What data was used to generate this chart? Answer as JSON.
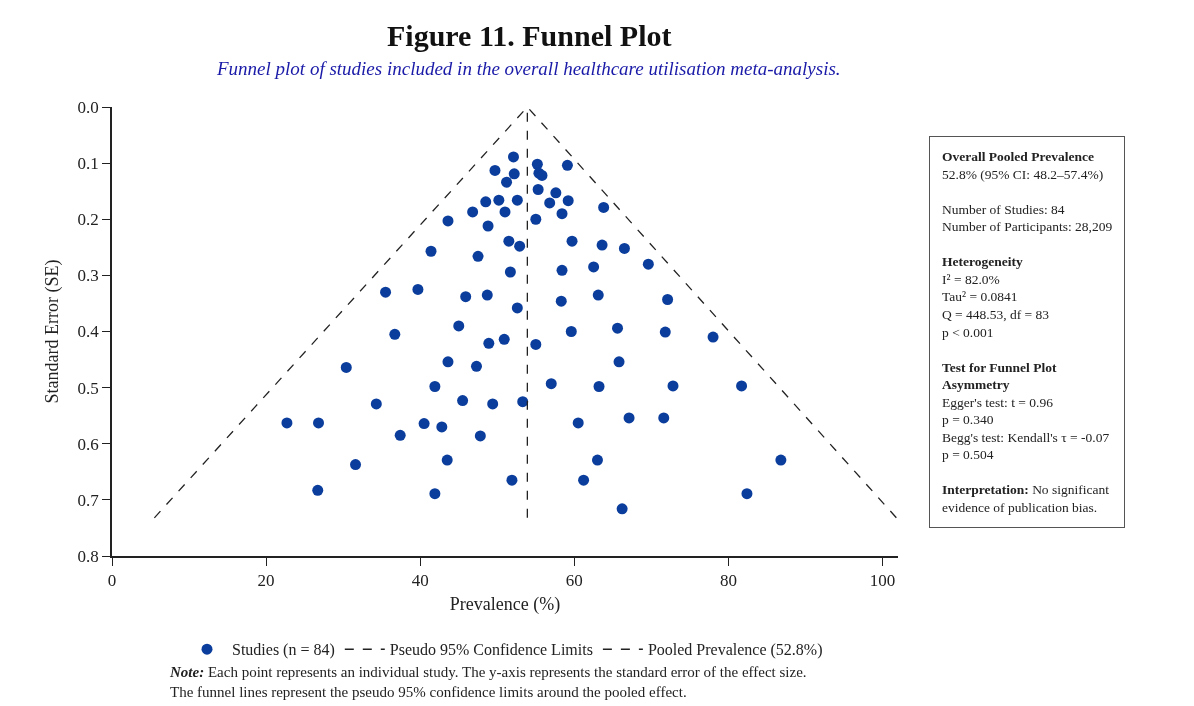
{
  "chart_data": {
    "type": "scatter",
    "title": "Figure 11. Funnel Plot",
    "subtitle": "Funnel plot of studies included in the overall healthcare utilisation meta-analysis.",
    "xlabel": "Prevalence (%)",
    "ylabel": "Standard Error (SE)",
    "xlim": [
      0,
      102
    ],
    "xticks": [
      0,
      20,
      40,
      60,
      80,
      100
    ],
    "ylim": [
      0.8,
      0.0
    ],
    "yticks": [
      {
        "value": 0,
        "label": "0.0"
      },
      0.1,
      0.2,
      0.3,
      0.4,
      0.5,
      0.6,
      0.7,
      0.8
    ],
    "legend": "bottom",
    "series": [
      {
        "name": "Studies (n = 84)",
        "color": "#0b3d9c",
        "marker": "circle",
        "x": [
          52.1,
          49.7,
          52.2,
          51.2,
          48.5,
          50.2,
          52.6,
          46.8,
          51.0,
          43.6,
          48.8,
          51.5,
          52.9,
          41.4,
          47.5,
          51.7,
          35.5,
          39.7,
          45.9,
          48.7,
          52.6,
          45.0,
          36.7,
          55.2,
          59.1,
          55.4,
          55.8,
          55.3,
          57.6,
          56.8,
          59.2,
          63.8,
          58.4,
          55.0,
          59.7,
          63.6,
          66.5,
          69.6,
          58.4,
          62.5,
          63.1,
          58.3,
          72.1,
          59.6,
          65.6,
          71.8,
          78.0,
          48.9,
          50.9,
          55.0,
          30.4,
          43.6,
          47.3,
          41.9,
          34.3,
          45.5,
          49.4,
          53.3,
          22.7,
          26.8,
          40.5,
          42.8,
          37.4,
          47.8,
          43.5,
          31.6,
          51.9,
          26.7,
          41.9,
          65.8,
          57.0,
          63.2,
          72.8,
          81.7,
          60.5,
          67.1,
          71.6,
          63.0,
          86.8,
          61.2,
          82.4,
          66.2
        ],
        "values": [
          0.089,
          0.113,
          0.119,
          0.134,
          0.169,
          0.166,
          0.166,
          0.187,
          0.187,
          0.203,
          0.212,
          0.239,
          0.248,
          0.257,
          0.266,
          0.294,
          0.33,
          0.325,
          0.338,
          0.335,
          0.358,
          0.39,
          0.405,
          0.102,
          0.104,
          0.118,
          0.122,
          0.147,
          0.153,
          0.171,
          0.167,
          0.179,
          0.19,
          0.2,
          0.239,
          0.246,
          0.252,
          0.28,
          0.291,
          0.285,
          0.335,
          0.346,
          0.343,
          0.4,
          0.394,
          0.401,
          0.41,
          0.421,
          0.414,
          0.423,
          0.464,
          0.454,
          0.462,
          0.498,
          0.529,
          0.523,
          0.529,
          0.525,
          0.563,
          0.563,
          0.564,
          0.57,
          0.585,
          0.586,
          0.629,
          0.637,
          0.665,
          0.683,
          0.689,
          0.454,
          0.493,
          0.498,
          0.497,
          0.497,
          0.563,
          0.554,
          0.554,
          0.629,
          0.629,
          0.665,
          0.689,
          0.716
        ]
      },
      {
        "name": "Pseudo 95% Confidence Limits",
        "type": "line",
        "color": "#222222",
        "line_style": "dashed",
        "marker": "none",
        "x": [
          5.5,
          53.9,
          101.8
        ],
        "values": [
          0.732,
          0.0,
          0.732
        ]
      },
      {
        "name": "Pooled Prevalence (52.8%)",
        "type": "line",
        "color": "#222222",
        "line_style": "dashed",
        "marker": "none",
        "x": [
          53.9,
          53.9
        ],
        "values": [
          0.732,
          0.0
        ]
      }
    ],
    "annotations": [
      "Note: Each point represents an individual study. The y-axis represents the standard error of the effect size.\nThe funnel lines represent the pseudo 95% confidence limits around the pooled effect.",
      "Overall Pooled Prevalence\n52.8% (95% CI: 48.2–57.4%)",
      "Number of Studies: 84\nNumber of Participants: 28,209",
      "Heterogeneity\nI² = 82.0%\nTau² = 0.0841\nQ = 448.53, df = 83\np < 0.001",
      "Test for Funnel Plot\nAsymmetry\nEgger's test: t = 0.96\np = 0.340\nBegg's test: Kendall's τ = -0.07\np = 0.504",
      "Interpretation: No significant\nevidence of publication bias."
    ]
  }
}
